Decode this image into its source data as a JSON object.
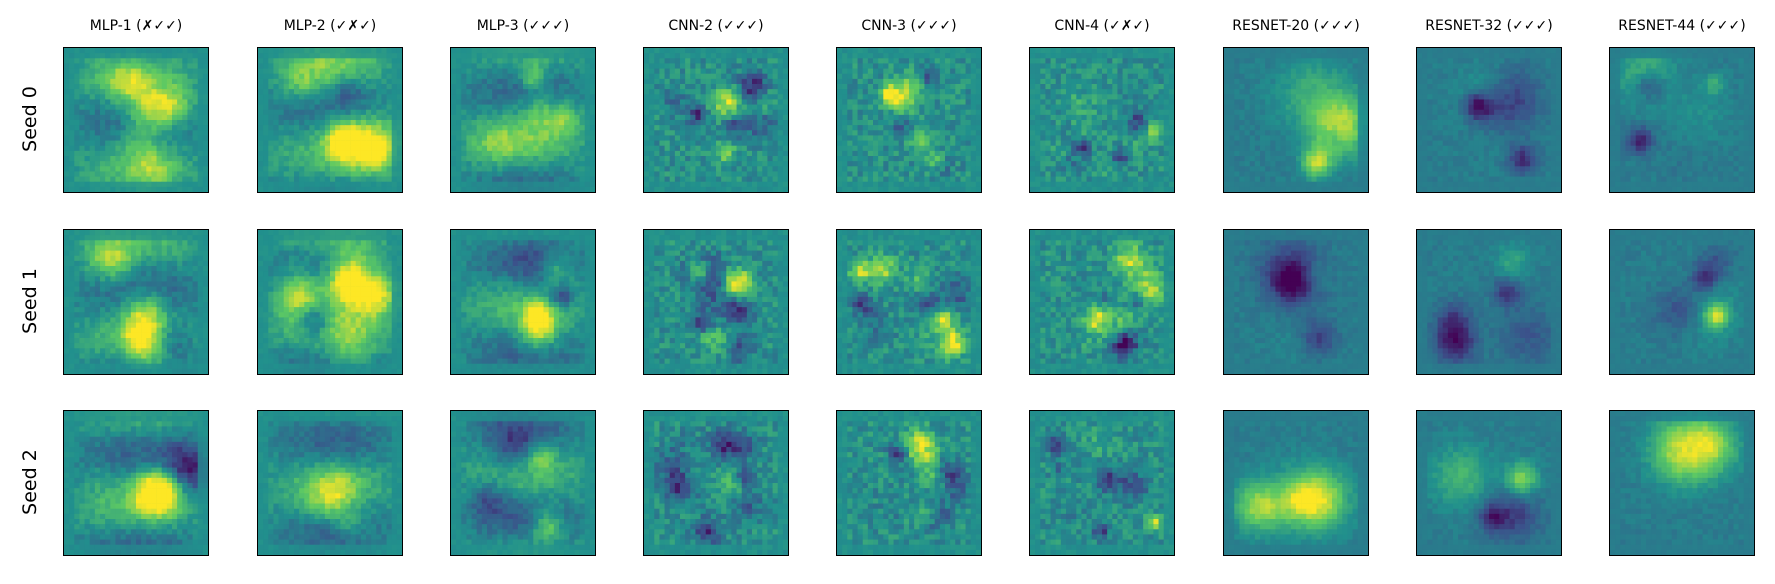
{
  "columns": [
    "MLP-1 (✗✓✓)",
    "MLP-2 (✓✗✓)",
    "MLP-3 (✓✓✓)",
    "CNN-2 (✓✓✓)",
    "CNN-3 (✓✓✓)",
    "CNN-4 (✓✗✓)",
    "RESNET-20 (✓✓✓)",
    "RESNET-32 (✓✓✓)",
    "RESNET-44 (✓✓✓)"
  ],
  "rows": [
    "Seed 0",
    "Seed 1",
    "Seed 2"
  ],
  "colormap": [
    "#440154",
    "#3b528b",
    "#21908d",
    "#5dc963",
    "#fde725"
  ],
  "panel_description": "saliency-like heatmaps (viridis colormap), 28x28 pixel grid, no axes or ticks"
}
